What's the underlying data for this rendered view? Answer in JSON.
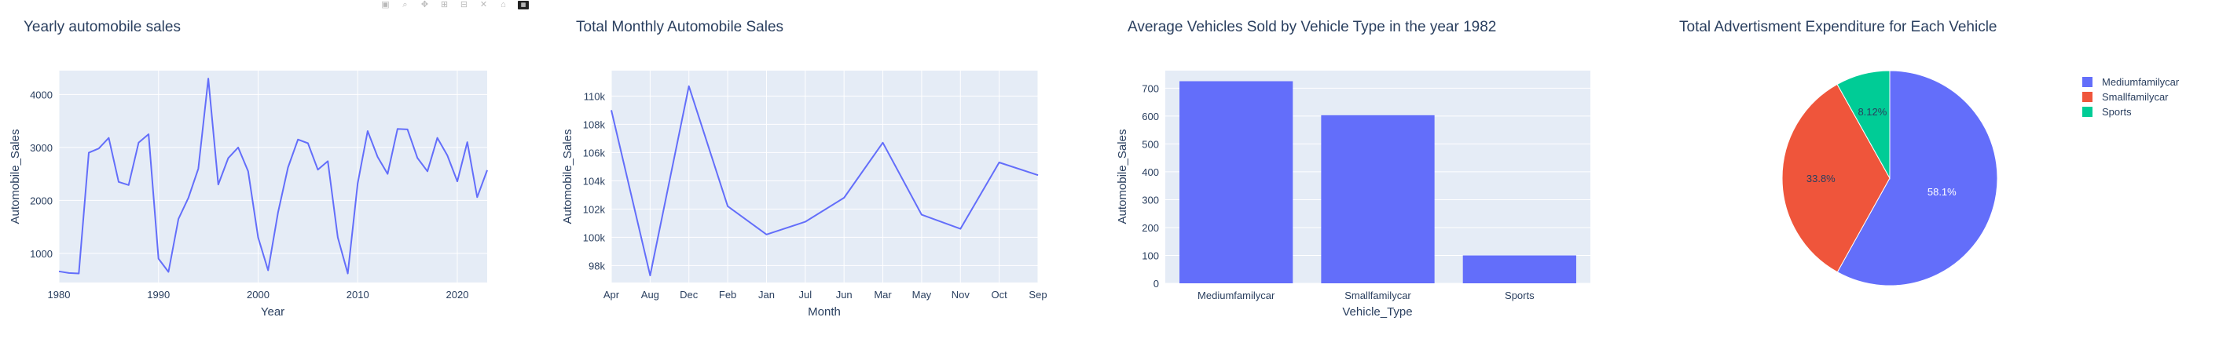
{
  "modebar": [
    {
      "name": "camera-icon",
      "glyph": "▣"
    },
    {
      "name": "zoom-icon",
      "glyph": "⌕"
    },
    {
      "name": "pan-icon",
      "glyph": "✥"
    },
    {
      "name": "zoom-in-icon",
      "glyph": "⊞"
    },
    {
      "name": "zoom-out-icon",
      "glyph": "⊟"
    },
    {
      "name": "autoscale-icon",
      "glyph": "✕"
    },
    {
      "name": "home-icon",
      "glyph": "⌂"
    },
    {
      "name": "plotly-logo-icon",
      "glyph": "▦"
    }
  ],
  "colors": {
    "plot_bg": "#e5ecf6",
    "grid": "#ffffff",
    "text": "#2a3f5f",
    "series": "#636efa",
    "pie": [
      "#636efa",
      "#ef553b",
      "#00cc96"
    ]
  },
  "chart_data": [
    {
      "type": "line",
      "title": "Yearly automobile sales",
      "xlabel": "Year",
      "ylabel": "Automobile_Sales",
      "xlim": [
        1980,
        2023
      ],
      "ylim": [
        450,
        4450
      ],
      "xticks": [
        1980,
        1990,
        2000,
        2010,
        2020
      ],
      "xtick_labels": [
        "1980",
        "1990",
        "2000",
        "2010",
        "2020"
      ],
      "yticks": [
        1000,
        2000,
        3000,
        4000
      ],
      "ytick_labels": [
        "1000",
        "2000",
        "3000",
        "4000"
      ],
      "grid": true,
      "x": [
        1980,
        1981,
        1982,
        1983,
        1984,
        1985,
        1986,
        1987,
        1988,
        1989,
        1990,
        1991,
        1992,
        1993,
        1994,
        1995,
        1996,
        1997,
        1998,
        1999,
        2000,
        2001,
        2002,
        2003,
        2004,
        2005,
        2006,
        2007,
        2008,
        2009,
        2010,
        2011,
        2012,
        2013,
        2014,
        2015,
        2016,
        2017,
        2018,
        2019,
        2020,
        2021,
        2022,
        2023
      ],
      "y": [
        660,
        630,
        620,
        2900,
        2980,
        3180,
        2350,
        2290,
        3090,
        3250,
        900,
        650,
        1650,
        2050,
        2600,
        4300,
        2300,
        2800,
        3000,
        2550,
        1300,
        680,
        1770,
        2620,
        3150,
        3080,
        2580,
        2740,
        1300,
        620,
        2320,
        3310,
        2820,
        2500,
        3350,
        3340,
        2800,
        2550,
        3180,
        2850,
        2360,
        3100,
        2060,
        2570
      ]
    },
    {
      "type": "line",
      "title": "Total Monthly Automobile Sales",
      "xlabel": "Month",
      "ylabel": "Automobile_Sales",
      "categories": [
        "Apr",
        "Aug",
        "Dec",
        "Feb",
        "Jan",
        "Jul",
        "Jun",
        "Mar",
        "May",
        "Nov",
        "Oct",
        "Sep"
      ],
      "ylim": [
        96800,
        111800
      ],
      "yticks": [
        98000,
        100000,
        102000,
        104000,
        106000,
        108000,
        110000
      ],
      "ytick_labels": [
        "98k",
        "100k",
        "102k",
        "104k",
        "106k",
        "108k",
        "110k"
      ],
      "grid": true,
      "values": [
        109000,
        97300,
        110700,
        102200,
        100200,
        101100,
        102800,
        106700,
        101600,
        100600,
        105300,
        104400
      ]
    },
    {
      "type": "bar",
      "title": "Average Vehicles Sold by Vehicle Type in the year 1982",
      "xlabel": "Vehicle_Type",
      "ylabel": "Automobile_Sales",
      "categories": [
        "Mediumfamilycar",
        "Smallfamilycar",
        "Sports"
      ],
      "values": [
        725,
        603,
        100
      ],
      "ylim": [
        0,
        763
      ],
      "yticks": [
        0,
        100,
        200,
        300,
        400,
        500,
        600,
        700
      ],
      "ytick_labels": [
        "0",
        "100",
        "200",
        "300",
        "400",
        "500",
        "600",
        "700"
      ],
      "grid": true
    },
    {
      "type": "pie",
      "title": "Total Advertisment Expenditure for Each Vehicle",
      "labels": [
        "Mediumfamilycar",
        "Smallfamilycar",
        "Sports"
      ],
      "values": [
        58.1,
        33.8,
        8.12
      ],
      "value_labels": [
        "58.1%",
        "33.8%",
        "8.12%"
      ],
      "legend": "top-right"
    }
  ]
}
